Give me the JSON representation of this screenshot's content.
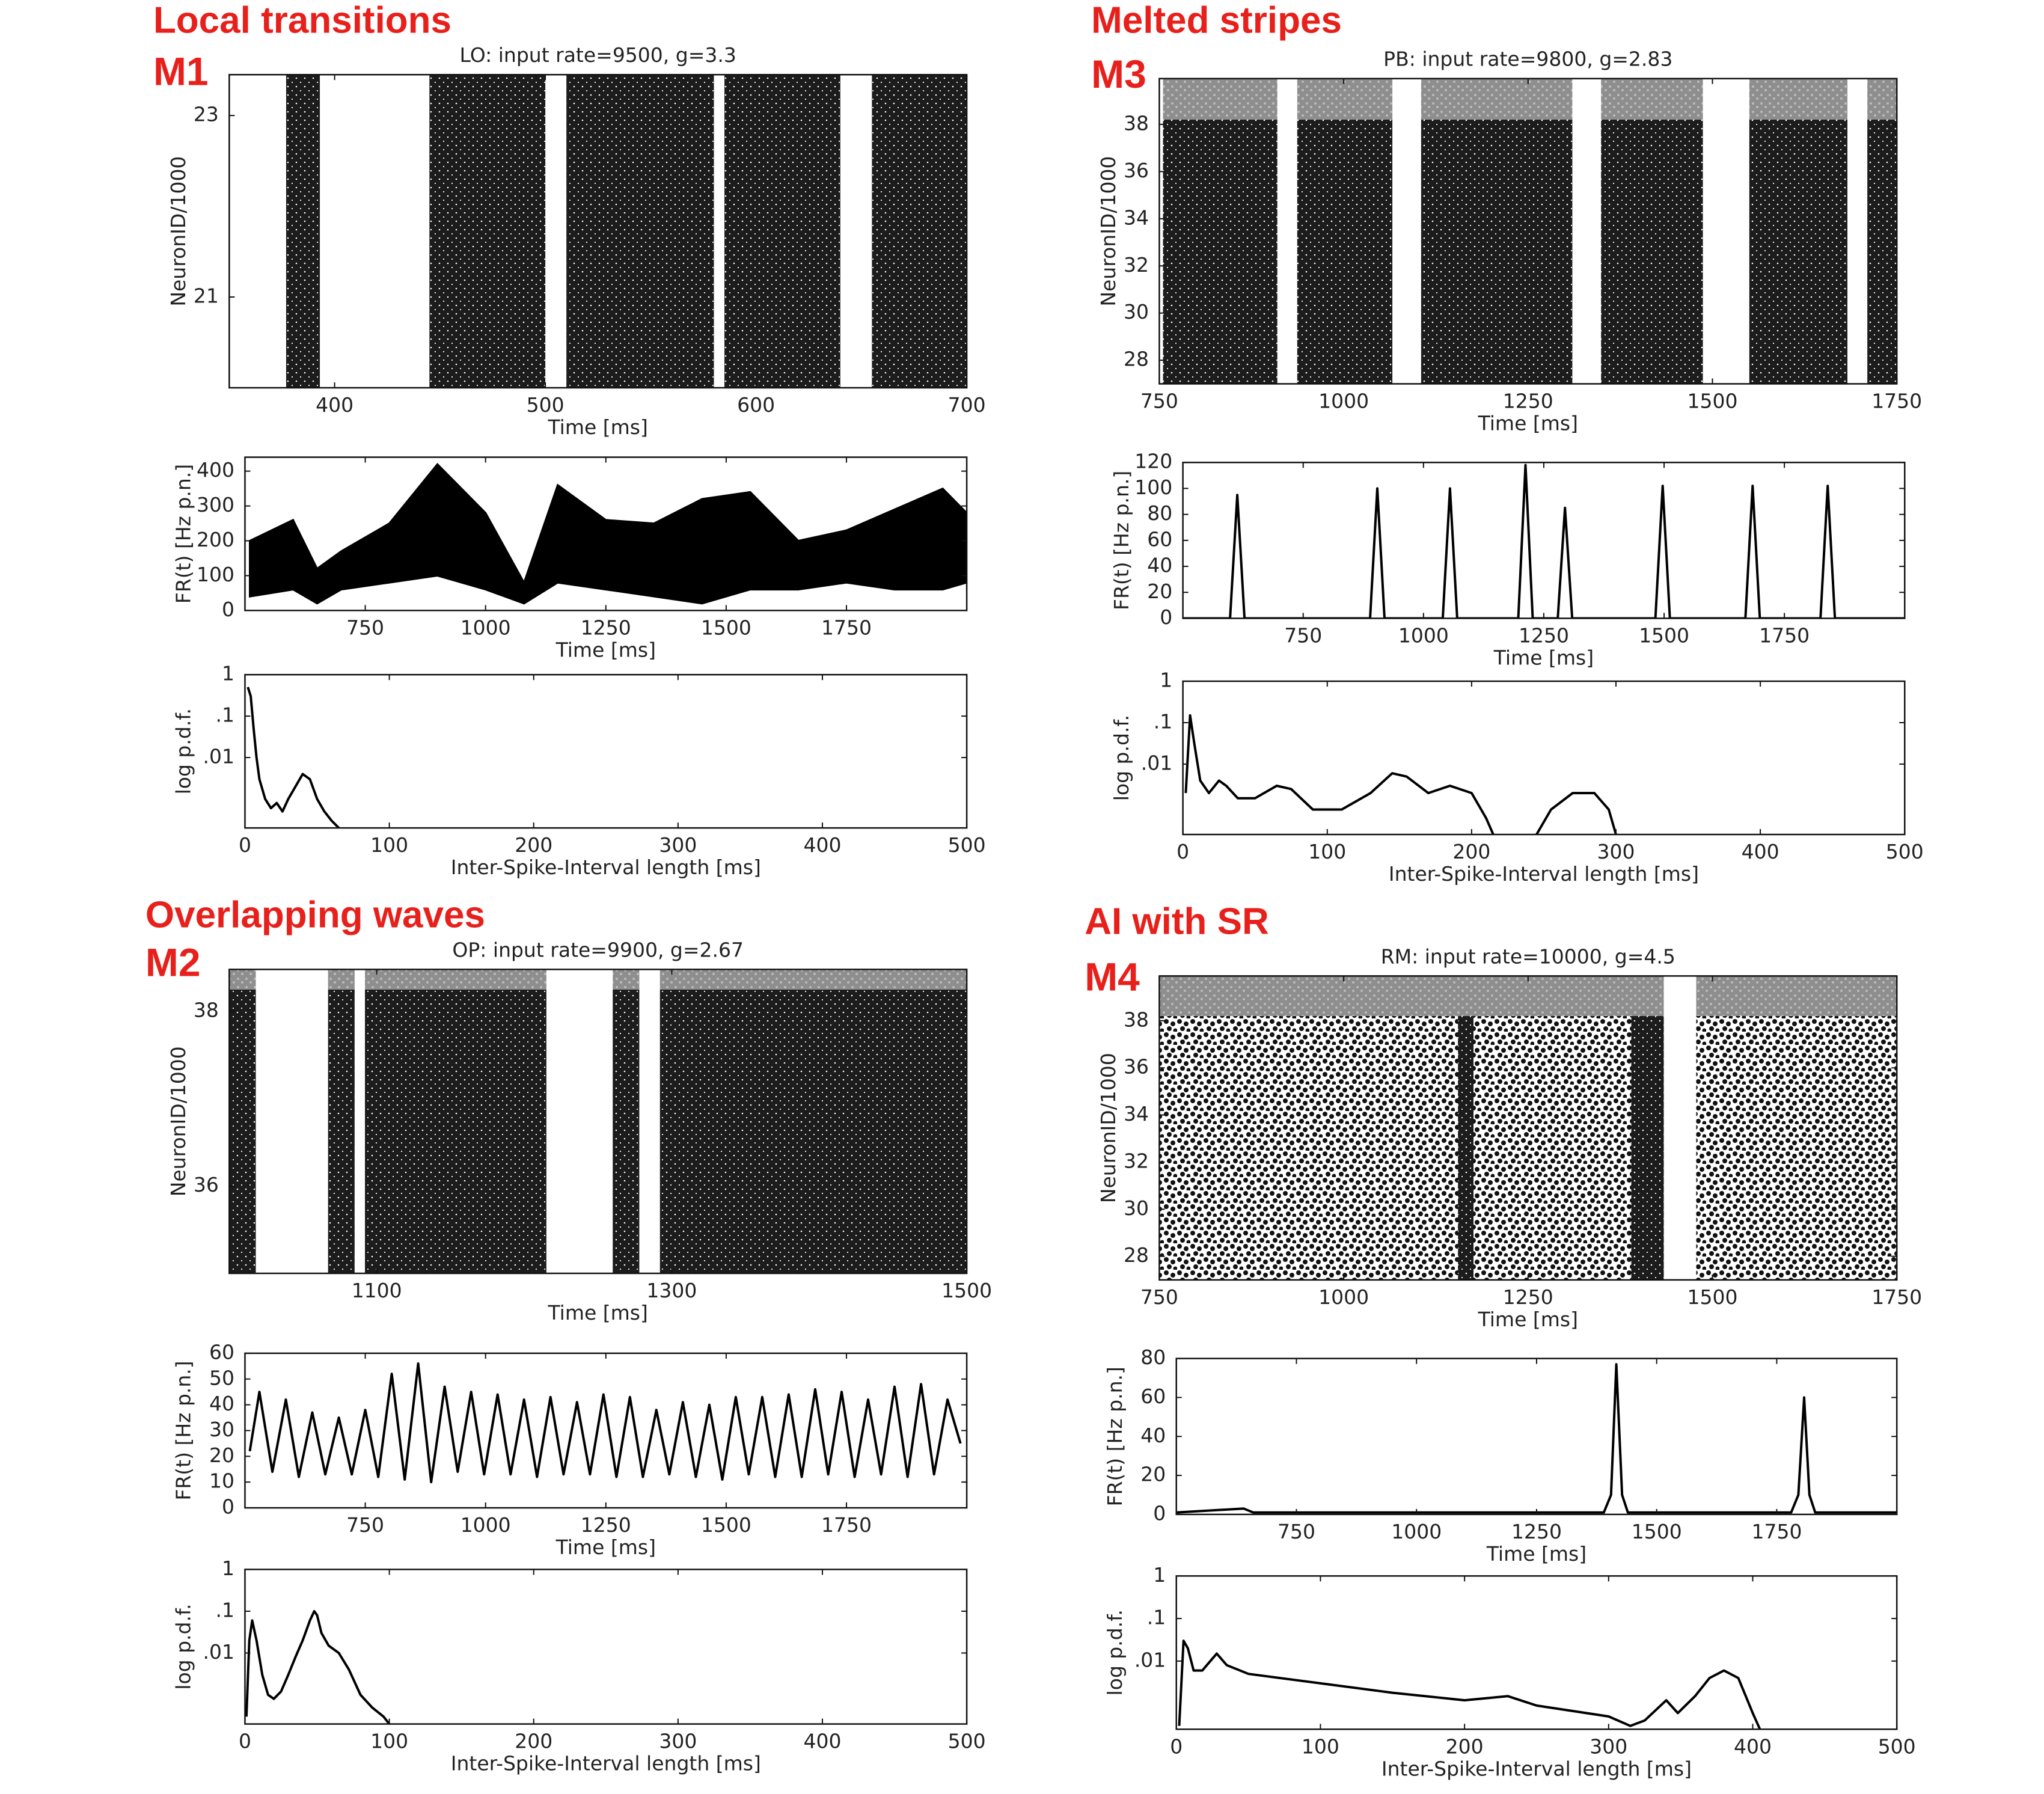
{
  "chart_data": [
    {
      "type": "raster",
      "heading": "Local transitions",
      "label": "M1",
      "title": "LO: input rate=9500, g=3.3",
      "xlabel": "Time [ms]",
      "ylabel": "NeuronID/1000",
      "xlim": [
        350,
        700
      ],
      "xticks": [
        400,
        500,
        600,
        700
      ],
      "ylim": [
        20,
        23.45
      ],
      "yticks": [
        21,
        23
      ],
      "bands": [
        [
          377,
          393
        ],
        [
          445,
          500
        ],
        [
          510,
          580
        ],
        [
          585,
          640
        ],
        [
          655,
          700
        ]
      ]
    },
    {
      "type": "area",
      "xlabel": "Time [ms]",
      "ylabel": "FR(t) [Hz p.n.]",
      "xlim": [
        500,
        2000
      ],
      "xticks": [
        750,
        1000,
        1250,
        1500,
        1750
      ],
      "ylim": [
        0,
        440
      ],
      "yticks": [
        0,
        100,
        200,
        300,
        400
      ],
      "x": [
        510,
        600,
        650,
        700,
        800,
        900,
        1000,
        1080,
        1150,
        1250,
        1350,
        1450,
        1550,
        1650,
        1750,
        1850,
        1950,
        2000
      ],
      "upper": [
        200,
        260,
        120,
        170,
        250,
        420,
        280,
        80,
        360,
        260,
        250,
        320,
        340,
        200,
        230,
        290,
        350,
        280
      ],
      "lower": [
        40,
        60,
        20,
        60,
        80,
        100,
        60,
        20,
        80,
        60,
        40,
        20,
        60,
        60,
        80,
        60,
        60,
        80
      ]
    },
    {
      "type": "line",
      "log_y": true,
      "xlabel": "Inter-Spike-Interval length [ms]",
      "ylabel": "log p.d.f.",
      "xlim": [
        0,
        500
      ],
      "xticks": [
        0,
        100,
        200,
        300,
        400,
        500
      ],
      "ylim": [
        0.0002,
        1
      ],
      "yticks": [
        1,
        {
          "value": 0.1,
          "label": ".1"
        },
        {
          "value": 0.01,
          "label": ".01"
        }
      ],
      "x": [
        2,
        4,
        6,
        8,
        10,
        14,
        18,
        22,
        26,
        30,
        35,
        40,
        45,
        50,
        55,
        60,
        65
      ],
      "values": [
        0.5,
        0.3,
        0.05,
        0.01,
        0.003,
        0.001,
        0.0006,
        0.0008,
        0.0005,
        0.001,
        0.002,
        0.004,
        0.003,
        0.001,
        0.0005,
        0.0003,
        0.0002
      ]
    },
    {
      "type": "raster",
      "heading": "Overlapping waves",
      "label": "M2",
      "title": "OP: input rate=9900, g=2.67",
      "xlabel": "Time [ms]",
      "ylabel": "NeuronID/1000",
      "xlim": [
        1000,
        1500
      ],
      "xticks": [
        1100,
        1300,
        1500
      ],
      "ylim": [
        35,
        38.48
      ],
      "yticks": [
        36,
        38
      ],
      "gray_above": 38.25,
      "bands": [
        [
          1000,
          1018
        ],
        [
          1067,
          1085
        ],
        [
          1092,
          1215
        ],
        [
          1260,
          1278
        ],
        [
          1292,
          1500
        ]
      ]
    },
    {
      "type": "line",
      "xlabel": "Time [ms]",
      "ylabel": "FR(t) [Hz p.n.]",
      "xlim": [
        500,
        2000
      ],
      "xticks": [
        750,
        1000,
        1250,
        1500,
        1750
      ],
      "ylim": [
        0,
        60
      ],
      "yticks": [
        0,
        10,
        20,
        30,
        40,
        50,
        60
      ],
      "x": [
        510,
        530,
        557,
        585,
        612,
        640,
        667,
        695,
        722,
        750,
        777,
        805,
        832,
        860,
        887,
        915,
        942,
        970,
        997,
        1025,
        1052,
        1080,
        1107,
        1135,
        1162,
        1190,
        1217,
        1245,
        1272,
        1300,
        1327,
        1355,
        1382,
        1410,
        1437,
        1465,
        1492,
        1520,
        1547,
        1575,
        1602,
        1630,
        1657,
        1685,
        1712,
        1740,
        1767,
        1795,
        1822,
        1850,
        1877,
        1905,
        1932,
        1960,
        1987
      ],
      "values": [
        22,
        45,
        14,
        42,
        12,
        37,
        13,
        35,
        13,
        38,
        12,
        52,
        11,
        56,
        10,
        47,
        14,
        45,
        13,
        44,
        13,
        42,
        12,
        43,
        13,
        41,
        13,
        44,
        12,
        43,
        12,
        38,
        13,
        41,
        12,
        40,
        11,
        43,
        13,
        43,
        12,
        44,
        12,
        46,
        13,
        45,
        12,
        42,
        13,
        47,
        12,
        48,
        13,
        42,
        25
      ]
    },
    {
      "type": "line",
      "log_y": true,
      "xlabel": "Inter-Spike-Interval length [ms]",
      "ylabel": "log p.d.f.",
      "xlim": [
        0,
        500
      ],
      "xticks": [
        0,
        100,
        200,
        300,
        400,
        500
      ],
      "ylim": [
        0.0002,
        1
      ],
      "yticks": [
        1,
        {
          "value": 0.1,
          "label": ".1"
        },
        {
          "value": 0.01,
          "label": ".01"
        }
      ],
      "x": [
        1,
        3,
        5,
        8,
        12,
        16,
        20,
        25,
        30,
        35,
        40,
        45,
        48,
        50,
        53,
        58,
        65,
        72,
        80,
        88,
        96,
        100
      ],
      "values": [
        0.0003,
        0.02,
        0.06,
        0.02,
        0.003,
        0.001,
        0.0008,
        0.0012,
        0.003,
        0.008,
        0.02,
        0.06,
        0.1,
        0.08,
        0.03,
        0.015,
        0.01,
        0.004,
        0.001,
        0.0005,
        0.0003,
        0.0002
      ]
    },
    {
      "type": "raster",
      "heading": "Melted stripes",
      "label": "M3",
      "title": "PB: input rate=9800, g=2.83",
      "xlabel": "Time [ms]",
      "ylabel": "NeuronID/1000",
      "xlim": [
        750,
        1750
      ],
      "xticks": [
        750,
        1000,
        1250,
        1500,
        1750
      ],
      "ylim": [
        27,
        39.94
      ],
      "yticks": [
        28,
        30,
        32,
        34,
        36,
        38
      ],
      "gray_above": 38.2,
      "bands": [
        [
          755,
          910
        ],
        [
          937,
          1066
        ],
        [
          1105,
          1310
        ],
        [
          1349,
          1487
        ],
        [
          1550,
          1683
        ],
        [
          1710,
          1750
        ]
      ]
    },
    {
      "type": "line",
      "xlabel": "Time [ms]",
      "ylabel": "FR(t) [Hz p.n.]",
      "xlim": [
        500,
        2000
      ],
      "xticks": [
        750,
        1000,
        1250,
        1500,
        1750
      ],
      "ylim": [
        0,
        120
      ],
      "yticks": [
        0,
        20,
        40,
        60,
        80,
        100,
        120
      ],
      "x": [
        500,
        598,
        613,
        628,
        889,
        904,
        919,
        1040,
        1055,
        1070,
        1197,
        1212,
        1227,
        1279,
        1294,
        1309,
        1482,
        1497,
        1512,
        1669,
        1684,
        1699,
        1825,
        1840,
        1855,
        2000
      ],
      "values": [
        0,
        0,
        95,
        0,
        0,
        100,
        0,
        0,
        100,
        0,
        0,
        118,
        0,
        0,
        85,
        0,
        0,
        102,
        0,
        0,
        102,
        0,
        0,
        102,
        0,
        0
      ]
    },
    {
      "type": "line",
      "log_y": true,
      "xlabel": "Inter-Spike-Interval length [ms]",
      "ylabel": "log p.d.f.",
      "xlim": [
        0,
        500
      ],
      "xticks": [
        0,
        100,
        200,
        300,
        400,
        500
      ],
      "ylim": [
        0.0002,
        1
      ],
      "yticks": [
        1,
        {
          "value": 0.1,
          "label": ".1"
        },
        {
          "value": 0.01,
          "label": ".01"
        }
      ],
      "x": [
        2,
        5,
        8,
        12,
        18,
        25,
        30,
        38,
        50,
        65,
        75,
        90,
        110,
        130,
        145,
        155,
        170,
        185,
        200,
        210,
        215,
        230,
        245,
        255,
        270,
        285,
        295,
        300
      ],
      "values": [
        0.002,
        0.15,
        0.03,
        0.004,
        0.002,
        0.004,
        0.003,
        0.0015,
        0.0015,
        0.003,
        0.0025,
        0.0008,
        0.0008,
        0.002,
        0.006,
        0.005,
        0.002,
        0.003,
        0.002,
        0.0005,
        0.0002,
        null,
        0.0002,
        0.0008,
        0.002,
        0.002,
        0.0008,
        0.0002
      ]
    },
    {
      "type": "raster",
      "heading": "AI with SR",
      "label": "M4",
      "title": "RM: input rate=10000, g=4.5",
      "xlabel": "Time [ms]",
      "ylabel": "NeuronID/1000",
      "xlim": [
        750,
        1750
      ],
      "xticks": [
        750,
        1000,
        1250,
        1500,
        1750
      ],
      "ylim": [
        27,
        39.9
      ],
      "yticks": [
        28,
        30,
        32,
        34,
        36,
        38
      ],
      "gray_above": 38.2,
      "sparse_bands": [
        [
          750,
          1434
        ],
        [
          1478,
          1750
        ]
      ],
      "bands": [
        [
          1155,
          1176
        ],
        [
          1390,
          1434
        ]
      ]
    },
    {
      "type": "line",
      "xlabel": "Time [ms]",
      "ylabel": "FR(t) [Hz p.n.]",
      "xlim": [
        500,
        2000
      ],
      "xticks": [
        750,
        1000,
        1250,
        1500,
        1750
      ],
      "ylim": [
        0,
        80
      ],
      "yticks": [
        0,
        20,
        40,
        60,
        80
      ],
      "x": [
        500,
        640,
        660,
        1390,
        1405,
        1416,
        1428,
        1440,
        1780,
        1795,
        1807,
        1818,
        1830,
        2000
      ],
      "values": [
        1,
        3,
        1,
        1,
        10,
        77,
        10,
        1,
        1,
        10,
        60,
        10,
        1,
        1
      ]
    },
    {
      "type": "line",
      "log_y": true,
      "xlabel": "Inter-Spike-Interval length [ms]",
      "ylabel": "log p.d.f.",
      "xlim": [
        0,
        500
      ],
      "xticks": [
        0,
        100,
        200,
        300,
        400,
        500
      ],
      "ylim": [
        0.00025,
        1
      ],
      "yticks": [
        1,
        {
          "value": 0.1,
          "label": ".1"
        },
        {
          "value": 0.01,
          "label": ".01"
        }
      ],
      "x": [
        2,
        5,
        8,
        12,
        18,
        28,
        35,
        50,
        100,
        150,
        200,
        230,
        250,
        300,
        315,
        325,
        340,
        348,
        360,
        370,
        380,
        390,
        400,
        405
      ],
      "values": [
        0.0003,
        0.03,
        0.02,
        0.006,
        0.006,
        0.015,
        0.008,
        0.005,
        0.003,
        0.0018,
        0.0012,
        0.0015,
        0.0009,
        0.0005,
        0.0003,
        0.0004,
        0.0012,
        0.0006,
        0.0015,
        0.004,
        0.006,
        0.004,
        0.0006,
        0.00025
      ]
    }
  ]
}
